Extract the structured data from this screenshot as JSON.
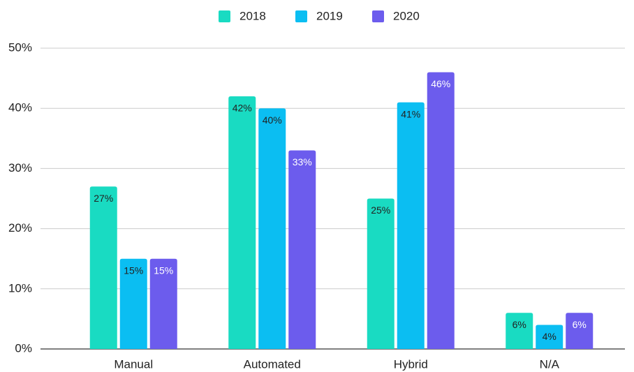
{
  "chart_data": {
    "type": "bar",
    "categories": [
      "Manual",
      "Automated",
      "Hybrid",
      "N/A"
    ],
    "series": [
      {
        "name": "2018",
        "color": "#19dbc2",
        "values": [
          27,
          42,
          25,
          6
        ],
        "value_labels": [
          "27%",
          "42%",
          "25%",
          "6%"
        ]
      },
      {
        "name": "2019",
        "color": "#0bbef2",
        "values": [
          15,
          40,
          41,
          4
        ],
        "value_labels": [
          "15%",
          "40%",
          "41%",
          "4%"
        ]
      },
      {
        "name": "2020",
        "color": "#6c5ced",
        "values": [
          15,
          33,
          46,
          6
        ],
        "value_labels": [
          "15%",
          "33%",
          "46%",
          "6%"
        ]
      }
    ],
    "ylim": [
      0,
      50
    ],
    "yticks": [
      {
        "value": 0,
        "label": "0%"
      },
      {
        "value": 10,
        "label": "10%"
      },
      {
        "value": 20,
        "label": "20%"
      },
      {
        "value": 30,
        "label": "30%"
      },
      {
        "value": 40,
        "label": "40%"
      },
      {
        "value": 50,
        "label": "50%"
      }
    ],
    "grid": true,
    "legend": "top"
  }
}
